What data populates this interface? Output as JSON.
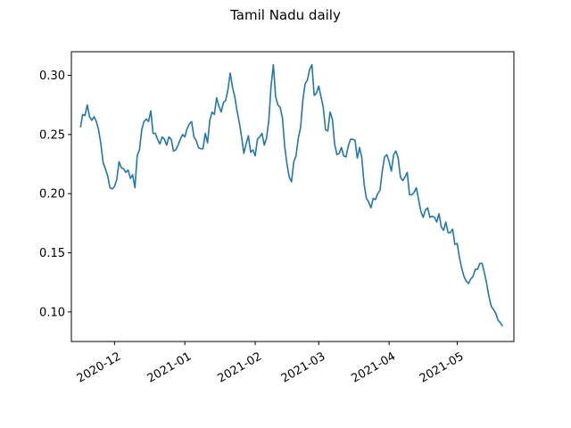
{
  "chart_data": {
    "type": "line",
    "title": "Tamil Nadu daily",
    "xlabel": "",
    "ylabel": "",
    "x_start": "2020-11-16",
    "x_end": "2021-05-21",
    "xlim": [
      "2020-11-12",
      "2021-05-26"
    ],
    "ylim": [
      0.075,
      0.32
    ],
    "yticks": [
      0.1,
      0.15,
      0.2,
      0.25,
      0.3
    ],
    "ytick_labels": [
      "0.10",
      "0.15",
      "0.20",
      "0.25",
      "0.30"
    ],
    "xticks": [
      "2020-12-01",
      "2021-01-01",
      "2021-02-01",
      "2021-03-01",
      "2021-04-01",
      "2021-05-01"
    ],
    "xtick_labels": [
      "2020-12",
      "2021-01",
      "2021-02",
      "2021-03",
      "2021-04",
      "2021-05"
    ],
    "grid": false,
    "series": [
      {
        "color": "#1f77b4",
        "values": [
          0.256,
          0.267,
          0.266,
          0.275,
          0.265,
          0.262,
          0.265,
          0.261,
          0.254,
          0.242,
          0.226,
          0.221,
          0.215,
          0.205,
          0.204,
          0.206,
          0.212,
          0.227,
          0.222,
          0.221,
          0.218,
          0.22,
          0.213,
          0.216,
          0.205,
          0.232,
          0.237,
          0.254,
          0.261,
          0.263,
          0.261,
          0.27,
          0.251,
          0.251,
          0.246,
          0.242,
          0.248,
          0.246,
          0.241,
          0.248,
          0.246,
          0.236,
          0.237,
          0.241,
          0.246,
          0.25,
          0.248,
          0.255,
          0.259,
          0.261,
          0.248,
          0.245,
          0.239,
          0.238,
          0.238,
          0.251,
          0.243,
          0.262,
          0.269,
          0.267,
          0.281,
          0.274,
          0.269,
          0.277,
          0.279,
          0.288,
          0.302,
          0.29,
          0.282,
          0.27,
          0.26,
          0.248,
          0.234,
          0.242,
          0.249,
          0.235,
          0.237,
          0.232,
          0.246,
          0.248,
          0.251,
          0.241,
          0.247,
          0.262,
          0.291,
          0.309,
          0.282,
          0.275,
          0.273,
          0.264,
          0.24,
          0.225,
          0.214,
          0.21,
          0.227,
          0.232,
          0.247,
          0.256,
          0.279,
          0.293,
          0.296,
          0.305,
          0.309,
          0.283,
          0.285,
          0.291,
          0.282,
          0.273,
          0.254,
          0.253,
          0.269,
          0.263,
          0.242,
          0.233,
          0.234,
          0.239,
          0.232,
          0.231,
          0.24,
          0.246,
          0.246,
          0.245,
          0.23,
          0.239,
          0.23,
          0.208,
          0.196,
          0.193,
          0.188,
          0.196,
          0.195,
          0.2,
          0.203,
          0.219,
          0.231,
          0.233,
          0.227,
          0.219,
          0.233,
          0.236,
          0.23,
          0.214,
          0.211,
          0.214,
          0.218,
          0.199,
          0.199,
          0.201,
          0.205,
          0.195,
          0.185,
          0.18,
          0.186,
          0.188,
          0.18,
          0.181,
          0.18,
          0.176,
          0.183,
          0.172,
          0.169,
          0.176,
          0.167,
          0.167,
          0.17,
          0.157,
          0.158,
          0.146,
          0.137,
          0.13,
          0.126,
          0.124,
          0.128,
          0.13,
          0.136,
          0.136,
          0.141,
          0.141,
          0.133,
          0.124,
          0.113,
          0.105,
          0.102,
          0.099,
          0.093,
          0.091,
          0.088
        ]
      }
    ]
  }
}
